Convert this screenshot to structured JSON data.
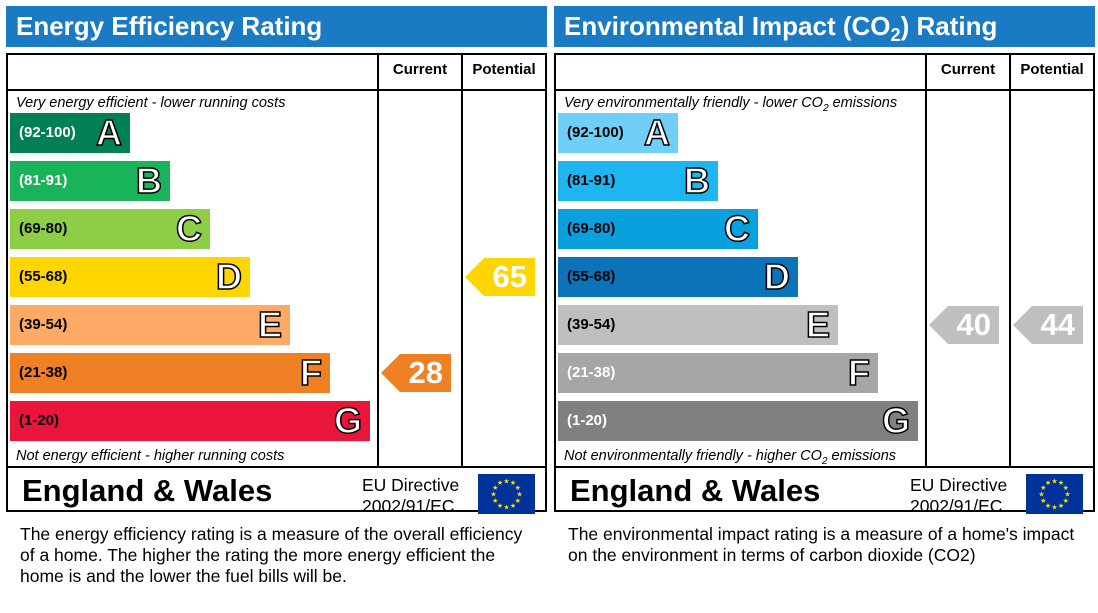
{
  "chart_data": [
    {
      "type": "bar",
      "title": "Energy Efficiency Rating",
      "columns": [
        "Current",
        "Potential"
      ],
      "top_note": "Very energy efficient - lower running costs",
      "bottom_note": "Not energy efficient - higher running costs",
      "bands": [
        {
          "range": "(92-100)",
          "letter": "A",
          "color": "#008054",
          "text_color": "#ffffff"
        },
        {
          "range": "(81-91)",
          "letter": "B",
          "color": "#19b459",
          "text_color": "#ffffff"
        },
        {
          "range": "(69-80)",
          "letter": "C",
          "color": "#8dce46",
          "text_color": "#000000"
        },
        {
          "range": "(55-68)",
          "letter": "D",
          "color": "#ffd500",
          "text_color": "#000000"
        },
        {
          "range": "(39-54)",
          "letter": "E",
          "color": "#fcaa65",
          "text_color": "#000000"
        },
        {
          "range": "(21-38)",
          "letter": "F",
          "color": "#ef8023",
          "text_color": "#000000"
        },
        {
          "range": "(1-20)",
          "letter": "G",
          "color": "#e9153b",
          "text_color": "#000000"
        }
      ],
      "current": {
        "value": "28",
        "band": "F",
        "color": "#ef8023"
      },
      "potential": {
        "value": "65",
        "band": "D",
        "color": "#ffd500"
      },
      "region": "England & Wales",
      "directive": [
        "EU Directive",
        "2002/91/EC"
      ],
      "description": "The energy efficiency rating is a measure of the overall efficiency of a home.  The higher the rating the more energy efficient the home is and the lower the fuel bills will be."
    },
    {
      "type": "bar",
      "title_parts": [
        "Environmental Impact (CO",
        "2",
        ") Rating"
      ],
      "columns": [
        "Current",
        "Potential"
      ],
      "top_note_parts": [
        "Very environmentally friendly - lower CO",
        "2",
        " emissions"
      ],
      "bottom_note_parts": [
        "Not environmentally friendly - higher CO",
        "2",
        " emissions"
      ],
      "bands": [
        {
          "range": "(92-100)",
          "letter": "A",
          "color": "#6fcff6",
          "text_color": "#000000"
        },
        {
          "range": "(81-91)",
          "letter": "B",
          "color": "#1fb5f0",
          "text_color": "#000000"
        },
        {
          "range": "(69-80)",
          "letter": "C",
          "color": "#0aa0dd",
          "text_color": "#000000"
        },
        {
          "range": "(55-68)",
          "letter": "D",
          "color": "#0c73b8",
          "text_color": "#000000"
        },
        {
          "range": "(39-54)",
          "letter": "E",
          "color": "#bfbfbf",
          "text_color": "#000000"
        },
        {
          "range": "(21-38)",
          "letter": "F",
          "color": "#a6a6a6",
          "text_color": "#ffffff"
        },
        {
          "range": "(1-20)",
          "letter": "G",
          "color": "#808080",
          "text_color": "#ffffff"
        }
      ],
      "current": {
        "value": "40",
        "band": "E",
        "color": "#bfbfbf"
      },
      "potential": {
        "value": "44",
        "band": "E",
        "color": "#bfbfbf"
      },
      "region": "England & Wales",
      "directive": [
        "EU Directive",
        "2002/91/EC"
      ],
      "description": "The environmental impact rating is a measure of a home's impact on the environment in terms of carbon dioxide (CO2)"
    }
  ],
  "colors": {
    "title_bar": "#1a7ac4",
    "eu_flag": "#003399",
    "eu_stars": "#ffdd00"
  },
  "icons": {
    "eu_flag": "eu-flag-icon"
  }
}
